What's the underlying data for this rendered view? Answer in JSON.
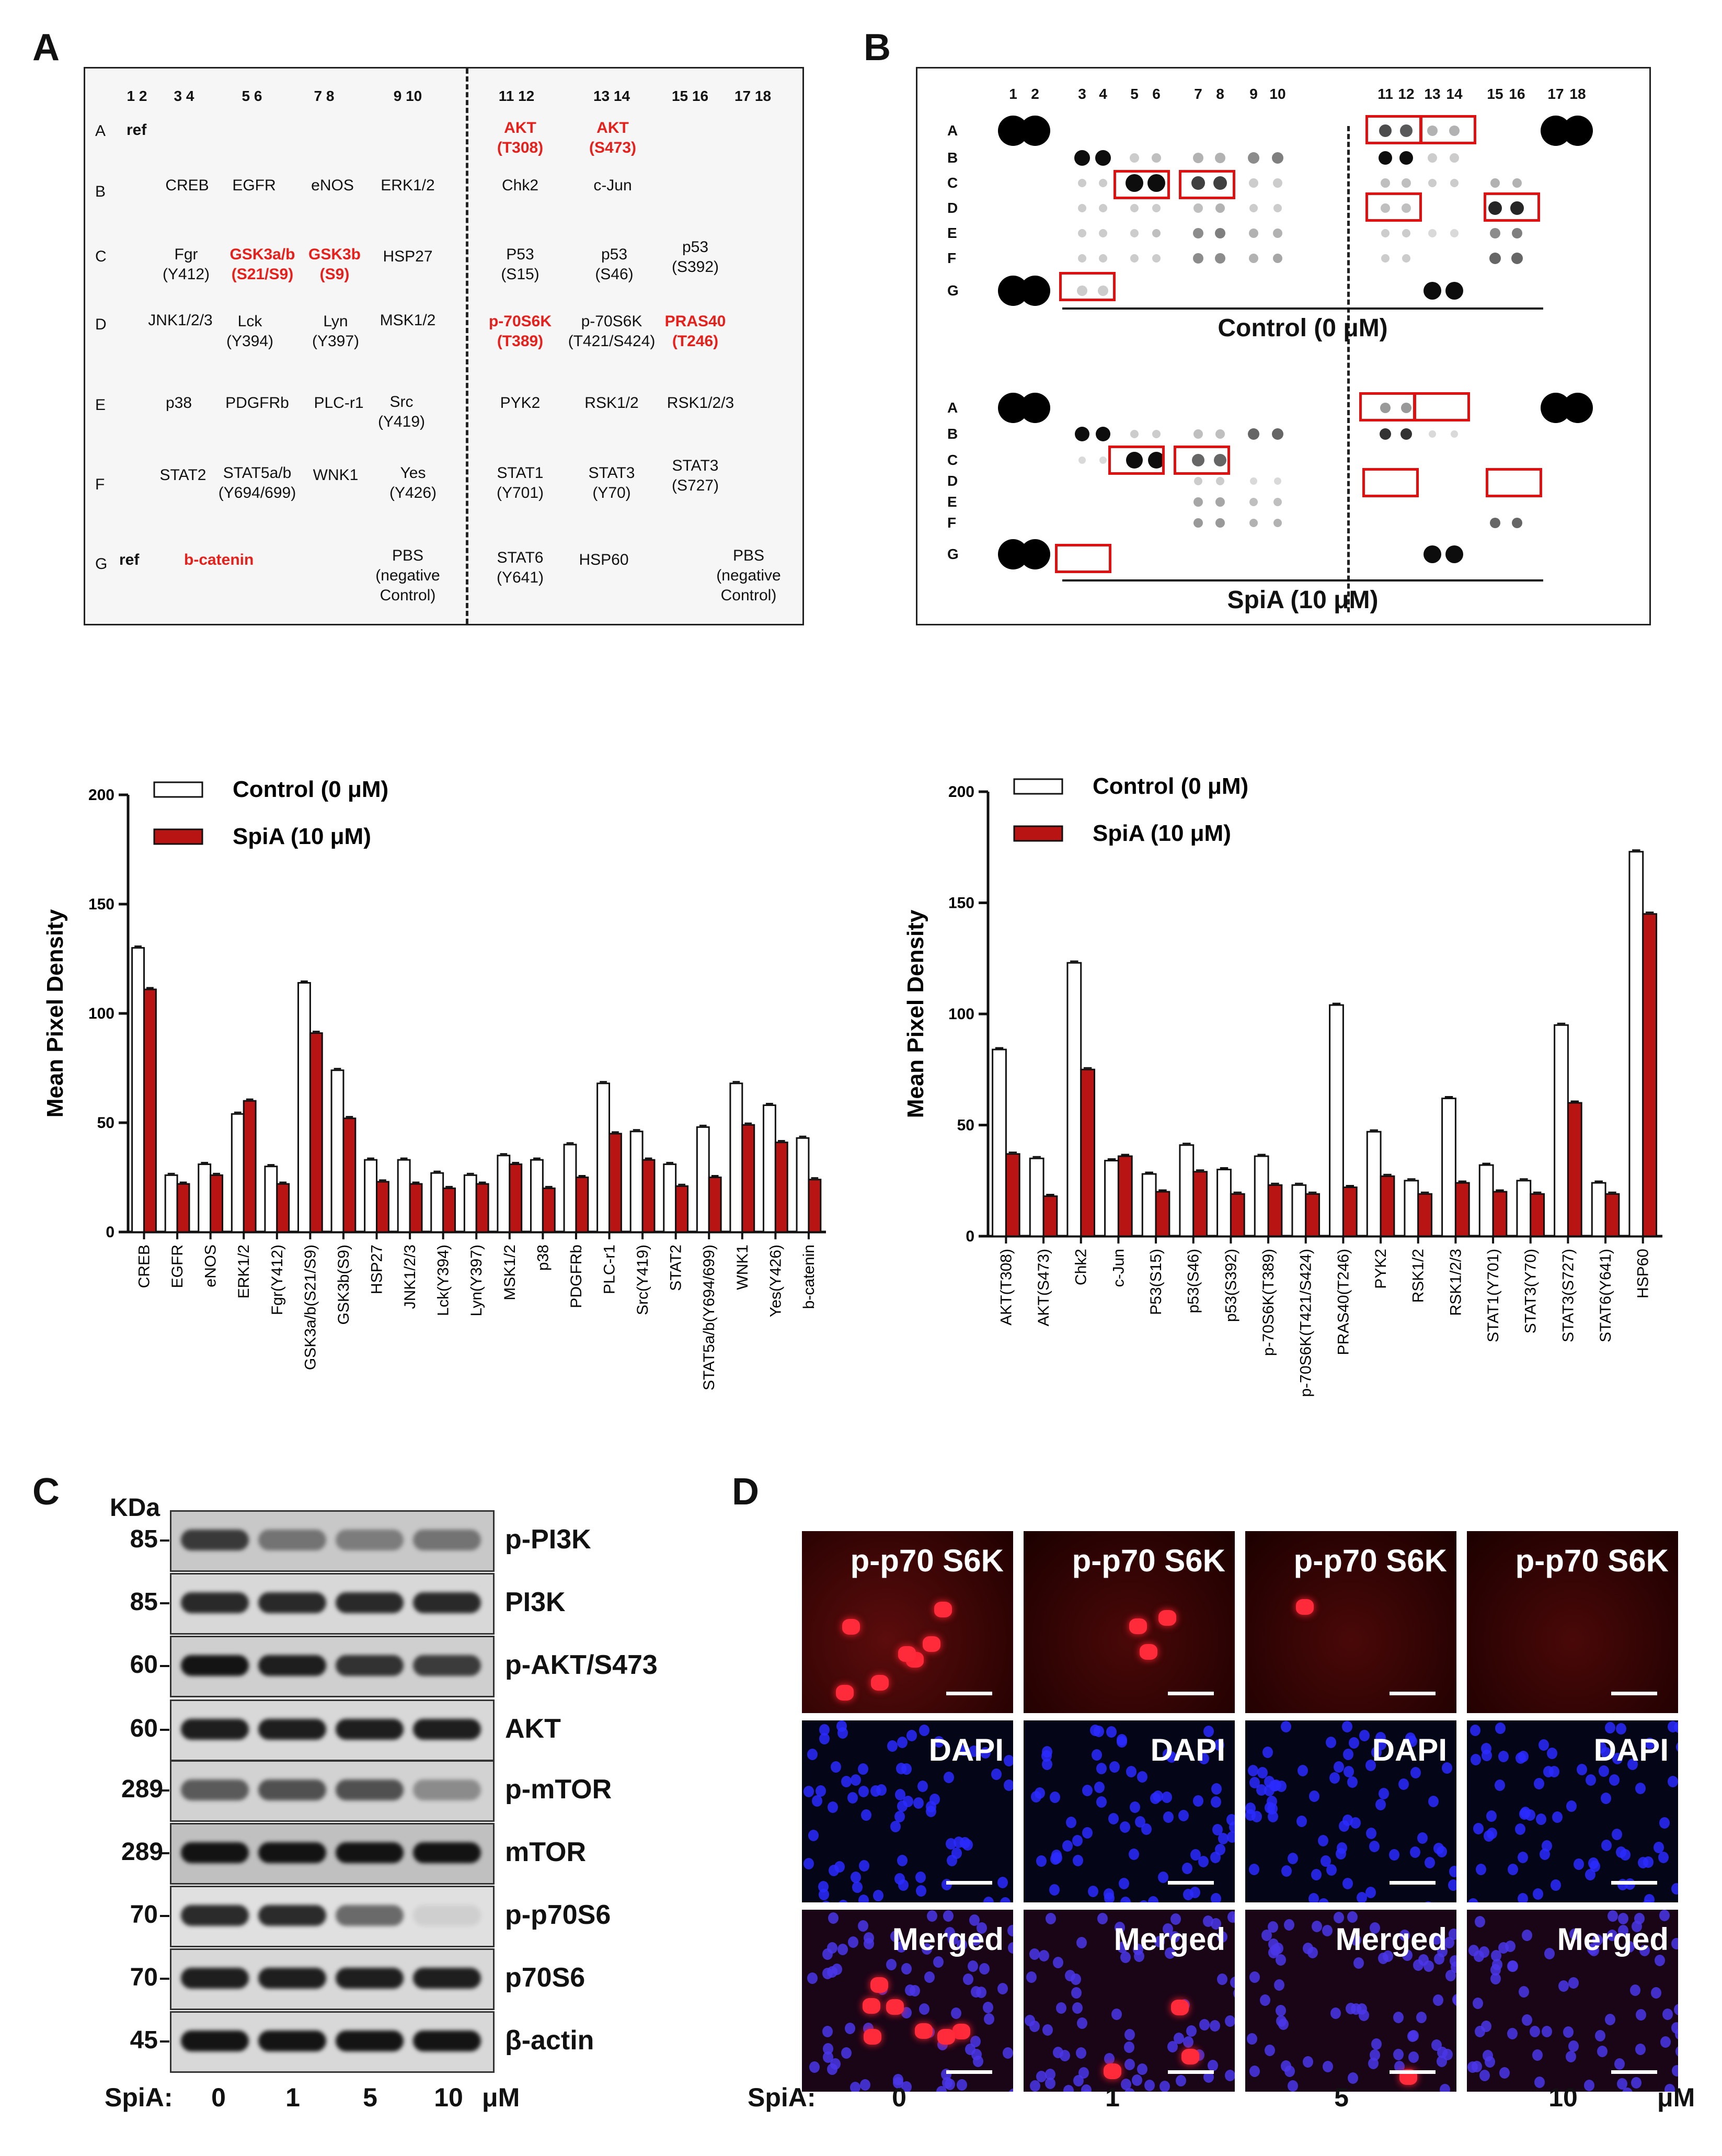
{
  "panels": {
    "A": "A",
    "B": "B",
    "C": "C",
    "D": "D"
  },
  "panelA": {
    "col_numbers": [
      "1 2",
      "3  4",
      "5 6",
      "7 8",
      "9 10",
      "11 12",
      "13 14",
      "15 16",
      "17 18"
    ],
    "row_letters": [
      "A",
      "B",
      "C",
      "D",
      "E",
      "F",
      "G"
    ],
    "cells": [
      {
        "text": "ref",
        "red": false,
        "bold": true
      },
      {
        "text": "AKT\n(T308)",
        "red": true
      },
      {
        "text": "AKT\n(S473)",
        "red": true
      },
      {
        "text": "CREB"
      },
      {
        "text": "EGFR"
      },
      {
        "text": "eNOS"
      },
      {
        "text": "ERK1/2"
      },
      {
        "text": "Chk2"
      },
      {
        "text": "c-Jun"
      },
      {
        "text": "Fgr\n(Y412)"
      },
      {
        "text": "GSK3a/b\n(S21/S9)",
        "red": true
      },
      {
        "text": "GSK3b\n(S9)",
        "red": true
      },
      {
        "text": "HSP27"
      },
      {
        "text": "P53\n(S15)"
      },
      {
        "text": "p53\n(S46)"
      },
      {
        "text": "p53\n(S392)"
      },
      {
        "text": "JNK1/2/3"
      },
      {
        "text": "Lck\n(Y394)"
      },
      {
        "text": "Lyn\n(Y397)"
      },
      {
        "text": "MSK1/2"
      },
      {
        "text": "p-70S6K\n(T389)",
        "red": true
      },
      {
        "text": "p-70S6K\n(T421/S424)"
      },
      {
        "text": "PRAS40\n(T246)",
        "red": true
      },
      {
        "text": "p38"
      },
      {
        "text": "PDGFRb"
      },
      {
        "text": "PLC-r1"
      },
      {
        "text": "Src\n(Y419)"
      },
      {
        "text": "PYK2"
      },
      {
        "text": "RSK1/2"
      },
      {
        "text": "RSK1/2/3"
      },
      {
        "text": "STAT2"
      },
      {
        "text": "STAT5a/b\n(Y694/699)"
      },
      {
        "text": "WNK1"
      },
      {
        "text": "Yes\n(Y426)"
      },
      {
        "text": "STAT1\n(Y701)"
      },
      {
        "text": "STAT3\n(Y70)"
      },
      {
        "text": "STAT3\n(S727)"
      },
      {
        "text": "ref",
        "bold": true
      },
      {
        "text": "b-catenin",
        "red": true
      },
      {
        "text": "PBS\n(negative\nControl)"
      },
      {
        "text": "STAT6\n(Y641)"
      },
      {
        "text": "HSP60"
      },
      {
        "text": "PBS\n(negative\nControl)"
      }
    ]
  },
  "panelB": {
    "col_numbers": [
      "1",
      "2",
      "3",
      "4",
      "5",
      "6",
      "7",
      "8",
      "9",
      "10",
      "11",
      "12",
      "13",
      "14",
      "15",
      "16",
      "17",
      "18"
    ],
    "row_letters": [
      "A",
      "B",
      "C",
      "D",
      "E",
      "F",
      "G"
    ],
    "control_label": "Control (0 μM)",
    "spia_label": "SpiA (10 μM)"
  },
  "legend": {
    "control": "Control (0 μM)",
    "spia": "SpiA (10 μM)"
  },
  "chart_data": [
    {
      "type": "bar",
      "ylabel": "Mean Pixel Density",
      "ylim": [
        0,
        200
      ],
      "yticks": [
        0,
        50,
        100,
        150,
        200
      ],
      "categories": [
        "CREB",
        "EGFR",
        "eNOS",
        "ERK1/2",
        "Fgr(Y412)",
        "GSK3a/b(S21/S9)",
        "GSK3b(S9)",
        "HSP27",
        "JNK1/2/3",
        "Lck(Y394)",
        "Lyn(Y397)",
        "MSK1/2",
        "p38",
        "PDGFRb",
        "PLC-r1",
        "Src(Y419)",
        "STAT2",
        "STAT5a/b(Y694/699)",
        "WNK1",
        "Yes(Y426)",
        "b-catenin"
      ],
      "series": [
        {
          "name": "Control (0 μM)",
          "values": [
            130,
            26,
            31,
            54,
            30,
            114,
            74,
            33,
            33,
            27,
            26,
            35,
            33,
            40,
            68,
            46,
            31,
            48,
            68,
            58,
            43
          ]
        },
        {
          "name": "SpiA (10 μM)",
          "values": [
            111,
            22,
            26,
            60,
            22,
            91,
            52,
            23,
            22,
            20,
            22,
            31,
            20,
            25,
            45,
            33,
            21,
            25,
            49,
            41,
            24
          ]
        }
      ],
      "legend": "top-left"
    },
    {
      "type": "bar",
      "ylabel": "Mean Pixel Density",
      "ylim": [
        0,
        200
      ],
      "yticks": [
        0,
        50,
        100,
        150,
        200
      ],
      "categories": [
        "AKT(T308)",
        "AKT(S473)",
        "Chk2",
        "c-Jun",
        "P53(S15)",
        "p53(S46)",
        "p53(S392)",
        "p-70S6K(T389)",
        "p-70S6K(T421/S424)",
        "PRAS40(T246)",
        "PYK2",
        "RSK1/2",
        "RSK1/2/3",
        "STAT1(Y701)",
        "STAT3(Y70)",
        "STAT3(S727)",
        "STAT6(Y641)",
        "HSP60"
      ],
      "series": [
        {
          "name": "Control (0 μM)",
          "values": [
            84,
            35,
            123,
            34,
            28,
            41,
            30,
            36,
            23,
            104,
            47,
            25,
            62,
            32,
            25,
            95,
            24,
            173
          ]
        },
        {
          "name": "SpiA (10 μM)",
          "values": [
            37,
            18,
            75,
            36,
            20,
            29,
            19,
            23,
            19,
            22,
            27,
            19,
            24,
            20,
            19,
            60,
            19,
            145
          ]
        }
      ],
      "legend": "top-left"
    }
  ],
  "panelC": {
    "kda_header": "KDa",
    "rows": [
      {
        "kda": "85",
        "label": "p-PI3K"
      },
      {
        "kda": "85",
        "label": "PI3K"
      },
      {
        "kda": "60",
        "label": "p-AKT/S473"
      },
      {
        "kda": "60",
        "label": "AKT"
      },
      {
        "kda": "289",
        "label": "p-mTOR"
      },
      {
        "kda": "289",
        "label": "mTOR"
      },
      {
        "kda": "70",
        "label": "p-p70S6"
      },
      {
        "kda": "70",
        "label": "p70S6"
      },
      {
        "kda": "45",
        "label": "β-actin"
      }
    ],
    "spia_label": "SpiA:",
    "doses": [
      "0",
      "1",
      "5",
      "10"
    ],
    "unit": "μM"
  },
  "panelD": {
    "row_labels": [
      "p-p70 S6K",
      "DAPI",
      "Merged"
    ],
    "spia_label": "SpiA:",
    "doses": [
      "0",
      "1",
      "5",
      "10"
    ],
    "unit": "μM"
  }
}
